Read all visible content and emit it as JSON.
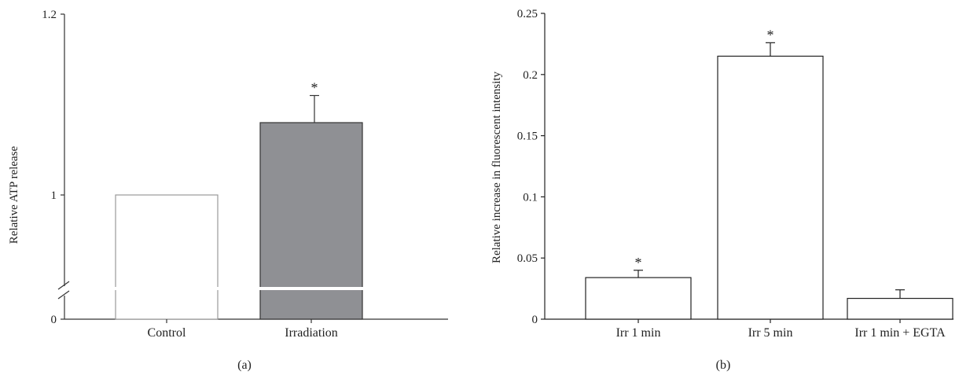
{
  "chart_data": [
    {
      "panel_label": "(a)",
      "type": "bar",
      "ylabel": "Relative ATP release",
      "axis_break": true,
      "ylim": [
        0.9,
        1.2
      ],
      "yticks": [
        {
          "value": 1.2,
          "label": "1.2"
        },
        {
          "value": 1.0,
          "label": "1"
        }
      ],
      "bottom_tick_label": "0",
      "categories": [
        "Control",
        "Irradiation"
      ],
      "values": [
        1.0,
        1.08
      ],
      "errors": [
        0,
        0.03
      ],
      "significance": [
        "",
        "*"
      ],
      "colors": [
        "#ffffff",
        "#8f9094"
      ]
    },
    {
      "panel_label": "(b)",
      "type": "bar",
      "ylabel": "Relative increase in fluorescent intensity",
      "ylim": [
        0,
        0.25
      ],
      "yticks": [
        {
          "value": 0,
          "label": "0"
        },
        {
          "value": 0.05,
          "label": "0.05"
        },
        {
          "value": 0.1,
          "label": "0.1"
        },
        {
          "value": 0.15,
          "label": "0.15"
        },
        {
          "value": 0.2,
          "label": "0.2"
        },
        {
          "value": 0.25,
          "label": "0.25"
        }
      ],
      "categories": [
        "Irr 1 min",
        "Irr 5 min",
        "Irr 1 min + EGTA"
      ],
      "values": [
        0.034,
        0.215,
        0.017
      ],
      "errors": [
        0.006,
        0.011,
        0.007
      ],
      "significance": [
        "*",
        "*",
        ""
      ],
      "colors": [
        "#ffffff",
        "#ffffff",
        "#ffffff"
      ]
    }
  ]
}
